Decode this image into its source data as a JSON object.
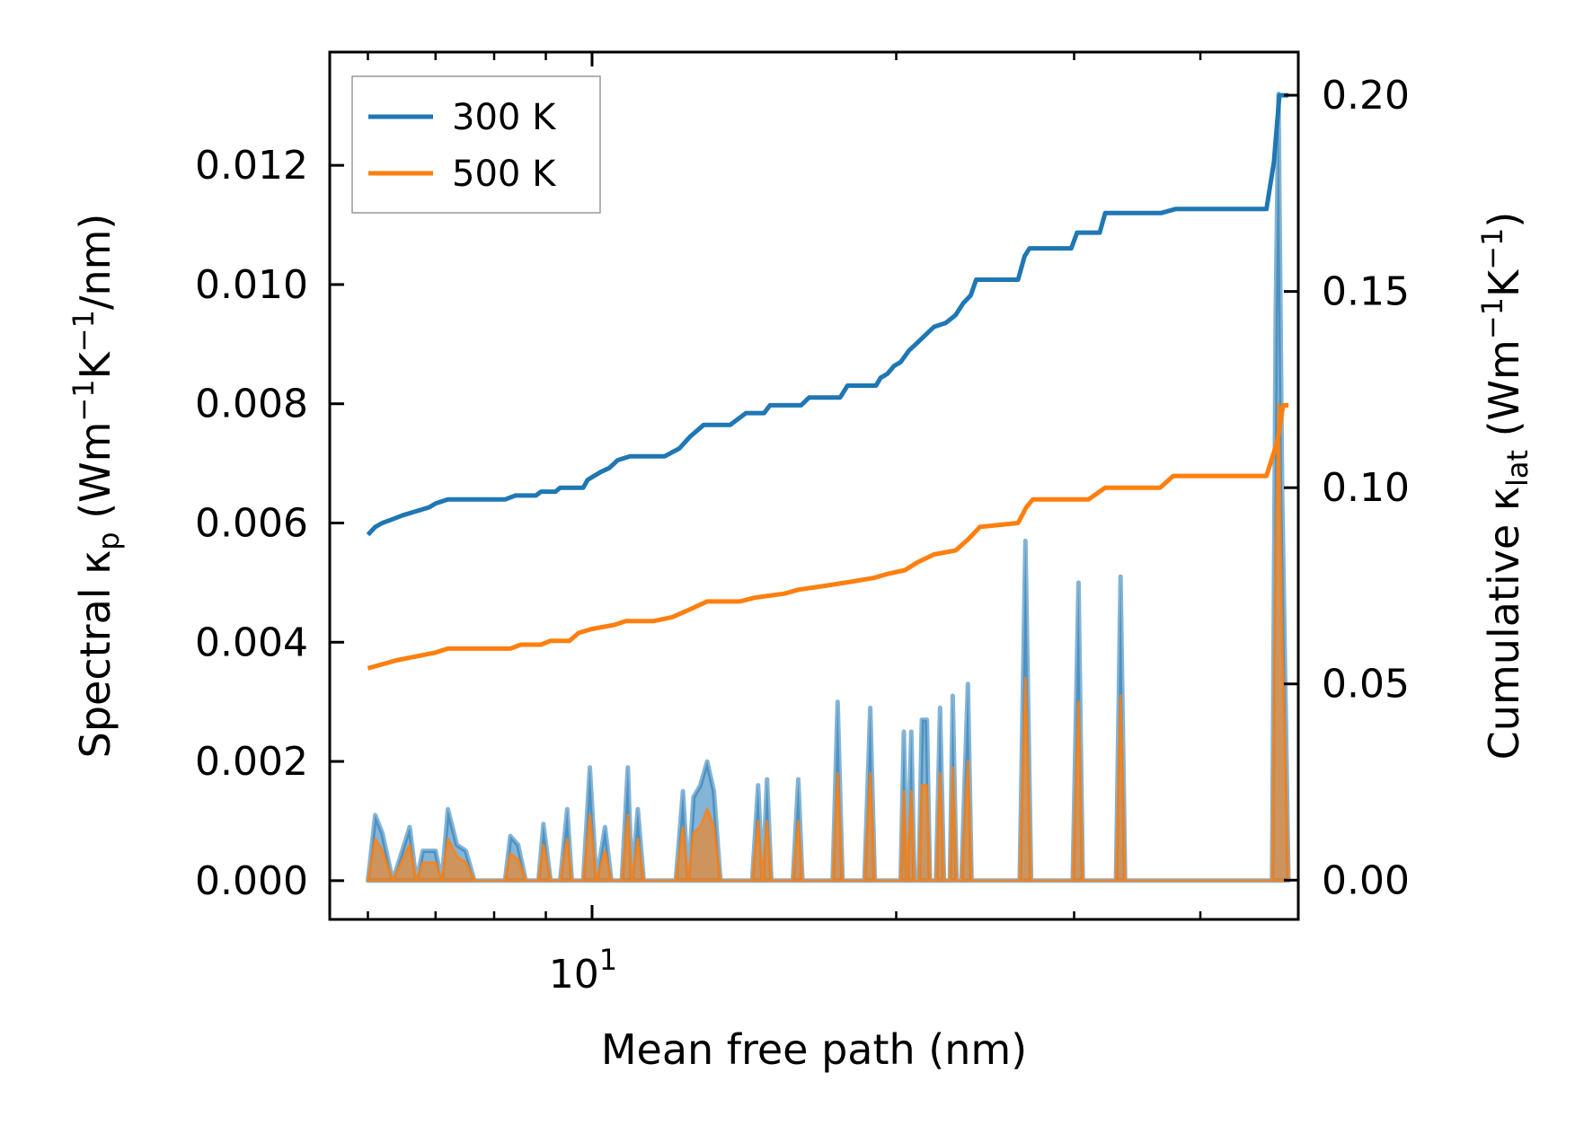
{
  "chart_data": {
    "type": "line",
    "xlabel": "Mean free path (nm)",
    "ylabel_left": {
      "prefix": "Spectral κ",
      "sub": "p",
      "suffix": " (Wm",
      "sup1": "−1",
      "mid": "K",
      "sup2": "−1",
      "end": "/nm)"
    },
    "ylabel_right": {
      "prefix": "Cumulative κ",
      "sub": "lat",
      "suffix": " (Wm",
      "sup1": "−1",
      "mid": "K",
      "sup2": "−1",
      "end": ")"
    },
    "x_scale": "log",
    "xlim": [
      5.5,
      50
    ],
    "ylim_left": [
      -0.00065,
      0.0139
    ],
    "ylim_right": [
      -0.01,
      0.211
    ],
    "x_ticks": [
      {
        "value": 10,
        "base": "10",
        "exp": "1"
      }
    ],
    "y_ticks_left": [
      "0.000",
      "0.002",
      "0.004",
      "0.006",
      "0.008",
      "0.010",
      "0.012"
    ],
    "y_ticks_right": [
      "0.00",
      "0.05",
      "0.10",
      "0.15",
      "0.20"
    ],
    "legend": {
      "position": "top-left",
      "entries": [
        "300 K",
        "500 K"
      ]
    },
    "colors": {
      "s300": "#1f77b4",
      "s500": "#ff7f0e",
      "fill300": "#1f77b4",
      "fill500": "#ff7f0e"
    },
    "series": [
      {
        "name": "300 K",
        "axis": "right",
        "points": [
          [
            6.0,
            0.088
          ],
          [
            6.1,
            0.09
          ],
          [
            6.2,
            0.091
          ],
          [
            6.35,
            0.092
          ],
          [
            6.5,
            0.093
          ],
          [
            6.7,
            0.094
          ],
          [
            6.9,
            0.095
          ],
          [
            7.0,
            0.096
          ],
          [
            7.2,
            0.097
          ],
          [
            7.5,
            0.097
          ],
          [
            8.2,
            0.097
          ],
          [
            8.4,
            0.098
          ],
          [
            8.8,
            0.098
          ],
          [
            8.9,
            0.099
          ],
          [
            9.2,
            0.099
          ],
          [
            9.3,
            0.1
          ],
          [
            9.8,
            0.1
          ],
          [
            9.9,
            0.102
          ],
          [
            10.2,
            0.104
          ],
          [
            10.4,
            0.105
          ],
          [
            10.6,
            0.107
          ],
          [
            10.9,
            0.108
          ],
          [
            11.8,
            0.108
          ],
          [
            12.2,
            0.11
          ],
          [
            12.5,
            0.113
          ],
          [
            12.9,
            0.116
          ],
          [
            13.7,
            0.116
          ],
          [
            14.2,
            0.119
          ],
          [
            14.8,
            0.119
          ],
          [
            15.0,
            0.121
          ],
          [
            16.1,
            0.121
          ],
          [
            16.4,
            0.123
          ],
          [
            17.6,
            0.123
          ],
          [
            17.9,
            0.126
          ],
          [
            19.1,
            0.126
          ],
          [
            19.3,
            0.128
          ],
          [
            19.6,
            0.129
          ],
          [
            19.9,
            0.131
          ],
          [
            20.2,
            0.132
          ],
          [
            20.6,
            0.135
          ],
          [
            21.0,
            0.137
          ],
          [
            21.4,
            0.139
          ],
          [
            21.8,
            0.141
          ],
          [
            22.4,
            0.142
          ],
          [
            22.9,
            0.144
          ],
          [
            23.3,
            0.147
          ],
          [
            23.7,
            0.149
          ],
          [
            24.0,
            0.153
          ],
          [
            26.4,
            0.153
          ],
          [
            26.8,
            0.159
          ],
          [
            27.1,
            0.161
          ],
          [
            29.8,
            0.161
          ],
          [
            30.2,
            0.165
          ],
          [
            31.8,
            0.165
          ],
          [
            32.2,
            0.17
          ],
          [
            36.6,
            0.17
          ],
          [
            37.8,
            0.171
          ],
          [
            46.5,
            0.171
          ],
          [
            47.3,
            0.183
          ],
          [
            47.9,
            0.2
          ],
          [
            48.9,
            0.2
          ]
        ]
      },
      {
        "name": "500 K",
        "axis": "right",
        "points": [
          [
            6.0,
            0.054
          ],
          [
            6.2,
            0.055
          ],
          [
            6.4,
            0.056
          ],
          [
            6.7,
            0.057
          ],
          [
            7.0,
            0.058
          ],
          [
            7.2,
            0.059
          ],
          [
            7.6,
            0.059
          ],
          [
            8.3,
            0.059
          ],
          [
            8.5,
            0.06
          ],
          [
            8.9,
            0.06
          ],
          [
            9.1,
            0.061
          ],
          [
            9.5,
            0.061
          ],
          [
            9.7,
            0.063
          ],
          [
            10.0,
            0.064
          ],
          [
            10.5,
            0.065
          ],
          [
            10.8,
            0.066
          ],
          [
            11.5,
            0.066
          ],
          [
            12.0,
            0.067
          ],
          [
            12.5,
            0.069
          ],
          [
            13.0,
            0.071
          ],
          [
            14.0,
            0.071
          ],
          [
            14.5,
            0.072
          ],
          [
            15.5,
            0.073
          ],
          [
            16.0,
            0.074
          ],
          [
            17.0,
            0.075
          ],
          [
            18.0,
            0.076
          ],
          [
            19.0,
            0.077
          ],
          [
            19.6,
            0.078
          ],
          [
            20.4,
            0.079
          ],
          [
            21.0,
            0.081
          ],
          [
            21.8,
            0.083
          ],
          [
            22.9,
            0.084
          ],
          [
            23.6,
            0.087
          ],
          [
            24.2,
            0.09
          ],
          [
            26.4,
            0.091
          ],
          [
            26.9,
            0.095
          ],
          [
            27.3,
            0.097
          ],
          [
            31.0,
            0.097
          ],
          [
            32.2,
            0.1
          ],
          [
            36.5,
            0.1
          ],
          [
            37.6,
            0.103
          ],
          [
            46.5,
            0.103
          ],
          [
            47.7,
            0.112
          ],
          [
            48.3,
            0.121
          ],
          [
            48.9,
            0.121
          ]
        ]
      },
      {
        "name": "300 K spectral",
        "axis": "left",
        "points": [
          [
            6.0,
            0.0
          ],
          [
            6.1,
            0.0011
          ],
          [
            6.2,
            0.0008
          ],
          [
            6.35,
            0.0
          ],
          [
            6.6,
            0.0009
          ],
          [
            6.7,
            0.0
          ],
          [
            6.8,
            0.0005
          ],
          [
            7.0,
            0.0005
          ],
          [
            7.1,
            0.0
          ],
          [
            7.2,
            0.0012
          ],
          [
            7.35,
            0.0006
          ],
          [
            7.5,
            0.0005
          ],
          [
            7.65,
            0.0
          ],
          [
            8.2,
            0.0
          ],
          [
            8.3,
            0.00075
          ],
          [
            8.45,
            0.0006
          ],
          [
            8.6,
            0.0
          ],
          [
            8.85,
            0.0
          ],
          [
            8.95,
            0.00095
          ],
          [
            9.1,
            0.0
          ],
          [
            9.3,
            0.0
          ],
          [
            9.45,
            0.0012
          ],
          [
            9.55,
            0.0
          ],
          [
            9.8,
            0.0
          ],
          [
            9.95,
            0.0019
          ],
          [
            10.1,
            0.0
          ],
          [
            10.3,
            0.0009
          ],
          [
            10.45,
            0.0
          ],
          [
            10.7,
            0.0
          ],
          [
            10.85,
            0.0019
          ],
          [
            10.95,
            0.0
          ],
          [
            11.1,
            0.0012
          ],
          [
            11.25,
            0.0
          ],
          [
            12.1,
            0.0
          ],
          [
            12.3,
            0.0015
          ],
          [
            12.45,
            0.0
          ],
          [
            12.6,
            0.0014
          ],
          [
            12.8,
            0.0016
          ],
          [
            13.0,
            0.002
          ],
          [
            13.2,
            0.0015
          ],
          [
            13.4,
            0.0
          ],
          [
            14.4,
            0.0
          ],
          [
            14.6,
            0.0016
          ],
          [
            14.75,
            0.0
          ],
          [
            14.9,
            0.0017
          ],
          [
            15.05,
            0.0
          ],
          [
            15.8,
            0.0
          ],
          [
            16.0,
            0.0017
          ],
          [
            16.15,
            0.0
          ],
          [
            17.3,
            0.0
          ],
          [
            17.5,
            0.003
          ],
          [
            17.7,
            0.0
          ],
          [
            18.6,
            0.0
          ],
          [
            18.85,
            0.0029
          ],
          [
            19.05,
            0.0
          ],
          [
            20.2,
            0.0
          ],
          [
            20.35,
            0.0025
          ],
          [
            20.5,
            0.0
          ],
          [
            20.7,
            0.0025
          ],
          [
            20.85,
            0.0
          ],
          [
            21.05,
            0.0
          ],
          [
            21.2,
            0.0027
          ],
          [
            21.45,
            0.0027
          ],
          [
            21.6,
            0.0
          ],
          [
            21.9,
            0.0
          ],
          [
            22.1,
            0.0029
          ],
          [
            22.3,
            0.0
          ],
          [
            22.6,
            0.0
          ],
          [
            22.75,
            0.0031
          ],
          [
            22.95,
            0.0
          ],
          [
            23.2,
            0.0
          ],
          [
            23.55,
            0.0033
          ],
          [
            23.75,
            0.0
          ],
          [
            26.5,
            0.0
          ],
          [
            26.85,
            0.0057
          ],
          [
            27.2,
            0.0
          ],
          [
            29.9,
            0.0
          ],
          [
            30.3,
            0.005
          ],
          [
            30.6,
            0.0
          ],
          [
            33.0,
            0.0
          ],
          [
            33.35,
            0.0051
          ],
          [
            33.7,
            0.0
          ],
          [
            47.1,
            0.0
          ],
          [
            47.5,
            0.0095
          ],
          [
            47.8,
            0.0132
          ],
          [
            48.2,
            0.0065
          ],
          [
            48.9,
            0.0
          ]
        ]
      },
      {
        "name": "500 K spectral",
        "axis": "left",
        "points": [
          [
            6.0,
            0.0
          ],
          [
            6.1,
            0.0007
          ],
          [
            6.2,
            0.0005
          ],
          [
            6.35,
            0.0
          ],
          [
            6.6,
            0.0006
          ],
          [
            6.7,
            0.0
          ],
          [
            6.8,
            0.0003
          ],
          [
            7.0,
            0.0003
          ],
          [
            7.1,
            0.0
          ],
          [
            7.2,
            0.0007
          ],
          [
            7.35,
            0.0004
          ],
          [
            7.5,
            0.0003
          ],
          [
            7.65,
            0.0
          ],
          [
            8.2,
            0.0
          ],
          [
            8.3,
            0.00045
          ],
          [
            8.45,
            0.00035
          ],
          [
            8.6,
            0.0
          ],
          [
            8.85,
            0.0
          ],
          [
            8.95,
            0.0006
          ],
          [
            9.1,
            0.0
          ],
          [
            9.3,
            0.0
          ],
          [
            9.45,
            0.0007
          ],
          [
            9.55,
            0.0
          ],
          [
            9.8,
            0.0
          ],
          [
            9.95,
            0.0011
          ],
          [
            10.1,
            0.0
          ],
          [
            10.3,
            0.0005
          ],
          [
            10.45,
            0.0
          ],
          [
            10.7,
            0.0
          ],
          [
            10.85,
            0.0011
          ],
          [
            10.95,
            0.0
          ],
          [
            11.1,
            0.0007
          ],
          [
            11.25,
            0.0
          ],
          [
            12.1,
            0.0
          ],
          [
            12.3,
            0.0009
          ],
          [
            12.45,
            0.0
          ],
          [
            12.6,
            0.0008
          ],
          [
            12.8,
            0.0009
          ],
          [
            13.0,
            0.0012
          ],
          [
            13.2,
            0.0009
          ],
          [
            13.4,
            0.0
          ],
          [
            14.4,
            0.0
          ],
          [
            14.6,
            0.001
          ],
          [
            14.75,
            0.0
          ],
          [
            14.9,
            0.001
          ],
          [
            15.05,
            0.0
          ],
          [
            15.8,
            0.0
          ],
          [
            16.0,
            0.001
          ],
          [
            16.15,
            0.0
          ],
          [
            17.3,
            0.0
          ],
          [
            17.5,
            0.0018
          ],
          [
            17.7,
            0.0
          ],
          [
            18.6,
            0.0
          ],
          [
            18.85,
            0.0018
          ],
          [
            19.05,
            0.0
          ],
          [
            20.2,
            0.0
          ],
          [
            20.35,
            0.0015
          ],
          [
            20.5,
            0.0
          ],
          [
            20.7,
            0.0015
          ],
          [
            20.85,
            0.0
          ],
          [
            21.05,
            0.0
          ],
          [
            21.2,
            0.0016
          ],
          [
            21.45,
            0.0016
          ],
          [
            21.6,
            0.0
          ],
          [
            21.9,
            0.0
          ],
          [
            22.1,
            0.0018
          ],
          [
            22.3,
            0.0
          ],
          [
            22.6,
            0.0
          ],
          [
            22.75,
            0.0019
          ],
          [
            22.95,
            0.0
          ],
          [
            23.2,
            0.0
          ],
          [
            23.55,
            0.002
          ],
          [
            23.75,
            0.0
          ],
          [
            26.5,
            0.0
          ],
          [
            26.85,
            0.0034
          ],
          [
            27.2,
            0.0
          ],
          [
            29.9,
            0.0
          ],
          [
            30.3,
            0.003
          ],
          [
            30.6,
            0.0
          ],
          [
            33.0,
            0.0
          ],
          [
            33.35,
            0.0031
          ],
          [
            33.7,
            0.0
          ],
          [
            47.1,
            0.0
          ],
          [
            47.5,
            0.0055
          ],
          [
            47.8,
            0.008
          ],
          [
            48.2,
            0.004
          ],
          [
            48.9,
            0.0
          ]
        ]
      }
    ]
  }
}
